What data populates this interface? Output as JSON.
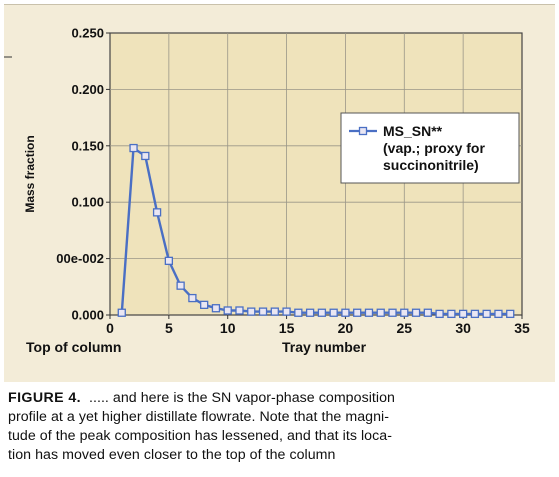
{
  "chart_data": {
    "type": "line",
    "ylabel": "Mass fraction",
    "xlabel": "Tray number",
    "x_start_label": "Top of column",
    "xlim": [
      0,
      35
    ],
    "ylim": [
      0,
      0.25
    ],
    "grid": true,
    "legend_position": "right",
    "x_ticks": [
      "0",
      "5",
      "10",
      "15",
      "20",
      "25",
      "30",
      "35"
    ],
    "y_ticks": [
      "0.000",
      "00e-002",
      "0.100",
      "0.150",
      "0.200",
      "0.250"
    ],
    "series": [
      {
        "name": "MS_SN**",
        "legend_lines": [
          "MS_SN**",
          "(vap.; proxy for",
          "succinonitrile)"
        ],
        "color": "#4a6fc4",
        "marker": "square",
        "x": [
          1,
          2,
          3,
          4,
          5,
          6,
          7,
          8,
          9,
          10,
          11,
          12,
          13,
          14,
          15,
          16,
          17,
          18,
          19,
          20,
          21,
          22,
          23,
          24,
          25,
          26,
          27,
          28,
          29,
          30,
          31,
          32,
          33,
          34
        ],
        "y": [
          0.002,
          0.148,
          0.141,
          0.091,
          0.048,
          0.026,
          0.015,
          0.009,
          0.006,
          0.004,
          0.004,
          0.003,
          0.003,
          0.003,
          0.003,
          0.002,
          0.002,
          0.002,
          0.002,
          0.002,
          0.002,
          0.002,
          0.002,
          0.002,
          0.002,
          0.002,
          0.002,
          0.001,
          0.001,
          0.001,
          0.001,
          0.001,
          0.001,
          0.001
        ]
      }
    ]
  },
  "caption": {
    "label": "FIGURE 4.",
    "lines": [
      "..... and here is the SN vapor-phase composition",
      "profile at a yet higher distillate flowrate.  Note that the magni-",
      "tude of the peak composition has lessened, and that its loca-",
      "tion has moved even closer to the top of the column"
    ]
  },
  "colors": {
    "plot_background": "#efe3bb",
    "panel_background": "#f3ecd8",
    "grid": "#9a9688",
    "series": "#4a6fc4"
  }
}
